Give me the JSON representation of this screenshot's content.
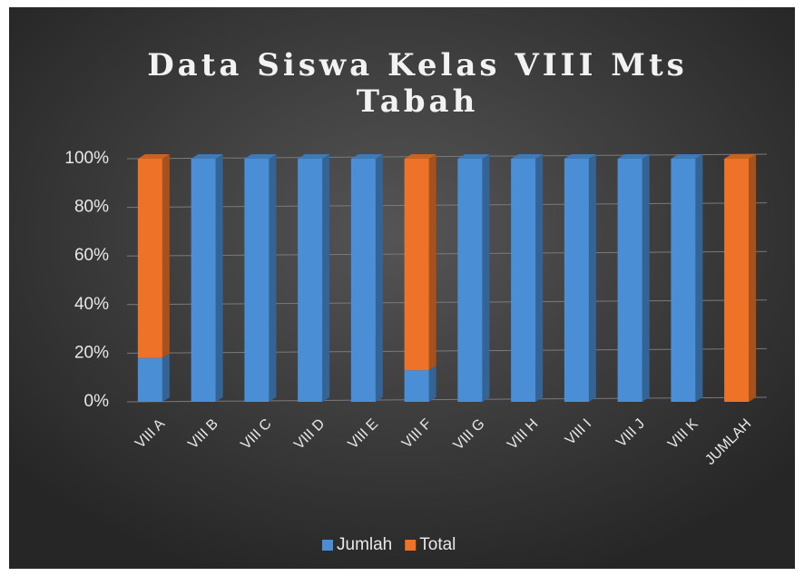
{
  "chart_data": {
    "type": "stacked_bar_100",
    "title": "Data Siswa Kelas VIII Mts",
    "subtitle": "Tabah",
    "categories": [
      "VIII A",
      "VIII B",
      "VIII C",
      "VIII D",
      "VIII E",
      "VIII F",
      "VIII G",
      "VIII H",
      "VIII I",
      "VIII J",
      "VIII K",
      "JUMLAH"
    ],
    "series": [
      {
        "name": "Jumlah",
        "color": "#4a8fd6",
        "values": [
          18,
          100,
          100,
          100,
          100,
          13,
          100,
          100,
          100,
          100,
          100,
          0
        ]
      },
      {
        "name": "Total",
        "color": "#ee7328",
        "values": [
          82,
          0,
          0,
          0,
          0,
          87,
          0,
          0,
          0,
          0,
          0,
          100
        ]
      }
    ],
    "ylim": [
      0,
      100
    ],
    "yticks": [
      {
        "value": 0,
        "label": "0%"
      },
      {
        "value": 20,
        "label": "20%"
      },
      {
        "value": 40,
        "label": "40%"
      },
      {
        "value": 60,
        "label": "60%"
      },
      {
        "value": 80,
        "label": "80%"
      },
      {
        "value": 100,
        "label": "100%"
      }
    ],
    "grid": true,
    "legend": "bottom"
  }
}
